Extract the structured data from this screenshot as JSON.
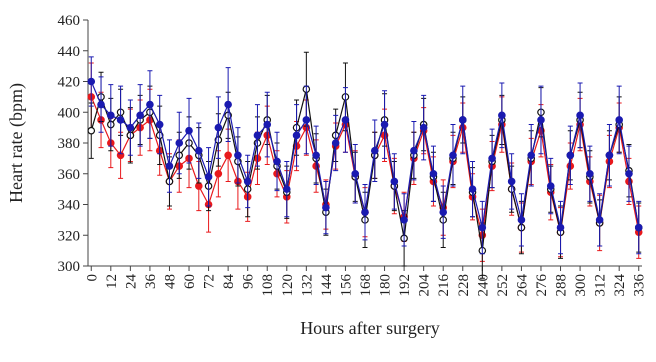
{
  "chart_data": {
    "type": "line",
    "x_label": "Hours after surgery",
    "y_label": "Heart rate (bpm)",
    "x": [
      0,
      6,
      12,
      18,
      24,
      30,
      36,
      42,
      48,
      54,
      60,
      66,
      72,
      78,
      84,
      90,
      96,
      102,
      108,
      114,
      120,
      126,
      132,
      138,
      144,
      150,
      156,
      162,
      168,
      174,
      180,
      186,
      192,
      198,
      204,
      210,
      216,
      222,
      228,
      234,
      240,
      246,
      252,
      258,
      264,
      270,
      276,
      282,
      288,
      294,
      300,
      306,
      312,
      318,
      324,
      330,
      336
    ],
    "xlim": [
      -2,
      338
    ],
    "xticks": [
      0,
      12,
      24,
      36,
      48,
      60,
      72,
      84,
      96,
      108,
      120,
      132,
      144,
      156,
      168,
      180,
      192,
      204,
      216,
      228,
      240,
      252,
      264,
      276,
      288,
      300,
      312,
      324,
      336
    ],
    "ylim": [
      300,
      460
    ],
    "yticks": [
      300,
      320,
      340,
      360,
      380,
      400,
      420,
      440,
      460
    ],
    "series": [
      {
        "color": "#e8191c",
        "marker": "filled",
        "values": [
          410,
          395,
          380,
          372,
          385,
          390,
          395,
          375,
          355,
          365,
          370,
          352,
          340,
          360,
          372,
          355,
          345,
          370,
          385,
          360,
          345,
          378,
          390,
          365,
          340,
          378,
          392,
          358,
          335,
          372,
          385,
          352,
          332,
          370,
          388,
          355,
          338,
          368,
          390,
          345,
          320,
          365,
          392,
          350,
          325,
          368,
          388,
          348,
          322,
          365,
          392,
          355,
          328,
          368,
          390,
          355,
          322
        ],
        "errors": [
          22,
          18,
          16,
          15,
          17,
          18,
          20,
          16,
          18,
          17,
          19,
          16,
          18,
          15,
          17,
          18,
          16,
          17,
          19,
          15,
          17,
          16,
          18,
          17,
          16,
          15,
          18,
          17,
          16,
          15,
          17,
          18,
          16,
          17,
          15,
          16,
          18,
          17,
          16,
          15,
          17,
          16,
          18,
          17,
          16,
          15,
          17,
          18,
          16,
          15,
          17,
          16,
          18,
          17,
          16,
          15,
          17
        ]
      },
      {
        "color": "#111111",
        "marker": "open",
        "values": [
          388,
          410,
          392,
          400,
          385,
          395,
          400,
          385,
          355,
          372,
          380,
          372,
          352,
          382,
          398,
          368,
          350,
          380,
          395,
          365,
          348,
          390,
          415,
          370,
          335,
          385,
          410,
          358,
          330,
          372,
          395,
          352,
          318,
          372,
          392,
          358,
          330,
          370,
          395,
          348,
          310,
          368,
          395,
          350,
          325,
          370,
          400,
          350,
          322,
          372,
          395,
          358,
          328,
          372,
          392,
          362,
          325
        ],
        "errors": [
          18,
          16,
          17,
          15,
          18,
          16,
          17,
          19,
          16,
          15,
          17,
          18,
          16,
          17,
          15,
          16,
          18,
          17,
          16,
          15,
          17,
          18,
          24,
          16,
          15,
          17,
          22,
          16,
          18,
          15,
          17,
          16,
          18,
          15,
          17,
          16,
          18,
          17,
          15,
          16,
          18,
          17,
          16,
          15,
          17,
          18,
          16,
          15,
          17,
          16,
          18,
          17,
          15,
          16,
          18,
          17,
          16
        ]
      },
      {
        "color": "#1a1ab0",
        "marker": "filled",
        "values": [
          420,
          405,
          398,
          395,
          390,
          398,
          405,
          392,
          365,
          380,
          388,
          375,
          358,
          390,
          405,
          372,
          355,
          385,
          392,
          368,
          350,
          385,
          395,
          372,
          338,
          380,
          395,
          360,
          335,
          375,
          392,
          355,
          330,
          375,
          390,
          360,
          335,
          372,
          395,
          350,
          325,
          370,
          398,
          355,
          330,
          372,
          395,
          352,
          325,
          372,
          398,
          360,
          330,
          372,
          395,
          360,
          325
        ],
        "errors": [
          16,
          18,
          20,
          22,
          18,
          20,
          22,
          19,
          17,
          20,
          21,
          18,
          19,
          20,
          24,
          18,
          17,
          20,
          21,
          19,
          18,
          20,
          22,
          19,
          17,
          18,
          21,
          19,
          18,
          20,
          22,
          18,
          17,
          19,
          21,
          18,
          17,
          20,
          22,
          18,
          17,
          19,
          21,
          18,
          17,
          20,
          22,
          18,
          17,
          19,
          21,
          18,
          17,
          20,
          22,
          18,
          17
        ]
      }
    ]
  }
}
